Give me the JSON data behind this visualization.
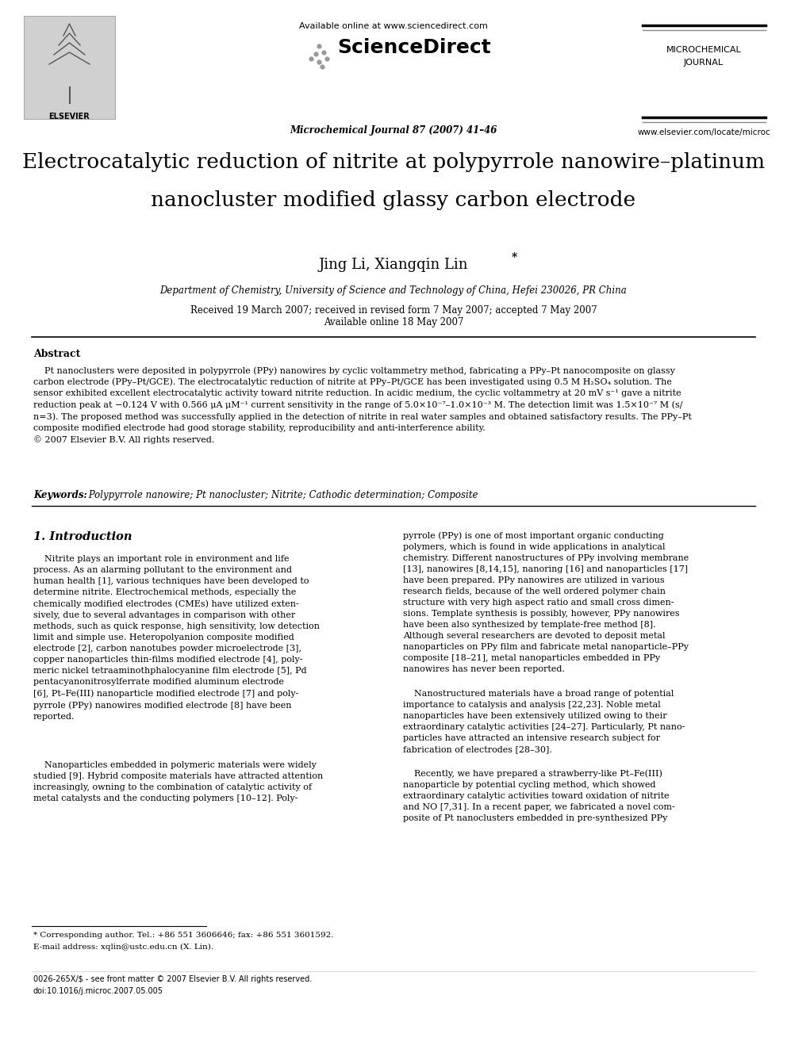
{
  "bg_color": "#ffffff",
  "available_online": "Available online at www.sciencedirect.com",
  "sciencedirect_text": "ScienceDirect",
  "journal_name_line1": "MICROCHEMICAL",
  "journal_name_line2": "JOURNAL",
  "journal_info": "Microchemical Journal 87 (2007) 41–46",
  "website": "www.elsevier.com/locate/microc",
  "elsevier_label": "ELSEVIER",
  "title_line1": "Electrocatalytic reduction of nitrite at polypyrrole nanowire–platinum",
  "title_line2": "nanocluster modified glassy carbon electrode",
  "authors": "Jing Li, Xiangqin Lin",
  "affiliation": "Department of Chemistry, University of Science and Technology of China, Hefei 230026, PR China",
  "date_line1": "Received 19 March 2007; received in revised form 7 May 2007; accepted 7 May 2007",
  "date_line2": "Available online 18 May 2007",
  "abstract_label": "Abstract",
  "abstract_body": "    Pt nanoclusters were deposited in polypyrrole (PPy) nanowires by cyclic voltammetry method, fabricating a PPy–Pt nanocomposite on glassy\ncarbon electrode (PPy–Pt/GCE). The electrocatalytic reduction of nitrite at PPy–Pt/GCE has been investigated using 0.5 M H₂SO₄ solution. The\nsensor exhibited excellent electrocatalytic activity toward nitrite reduction. In acidic medium, the cyclic voltammetry at 20 mV s⁻¹ gave a nitrite\nreduction peak at −0.124 V with 0.566 μA μM⁻¹ current sensitivity in the range of 5.0×10⁻⁷–1.0×10⁻³ M. The detection limit was 1.5×10⁻⁷ M (s/\nn=3). The proposed method was successfully applied in the detection of nitrite in real water samples and obtained satisfactory results. The PPy–Pt\ncomposite modified electrode had good storage stability, reproducibility and anti-interference ability.\n© 2007 Elsevier B.V. All rights reserved.",
  "keywords_label": "Keywords:",
  "keywords_body": " Polypyrrole nanowire; Pt nanocluster; Nitrite; Cathodic determination; Composite",
  "section1_title": "1. Introduction",
  "col1_p1": "    Nitrite plays an important role in environment and life\nprocess. As an alarming pollutant to the environment and\nhuman health [1], various techniques have been developed to\ndetermine nitrite. Electrochemical methods, especially the\nchemically modified electrodes (CMEs) have utilized exten-\nsively, due to several advantages in comparison with other\nmethods, such as quick response, high sensitivity, low detection\nlimit and simple use. Heteropolyanion composite modified\nelectrode [2], carbon nanotubes powder microelectrode [3],\ncopper nanoparticles thin-films modified electrode [4], poly-\nmeric nickel tetraaminothphalocyanine film electrode [5], Pd\npentacyanonitrosylferrate modified aluminum electrode\n[6], Pt–Fe(III) nanoparticle modified electrode [7] and poly-\npyrrole (PPy) nanowires modified electrode [8] have been\nreported.",
  "col1_p2": "    Nanoparticles embedded in polymeric materials were widely\nstudied [9]. Hybrid composite materials have attracted attention\nincreasingly, owning to the combination of catalytic activity of\nmetal catalysts and the conducting polymers [10–12]. Poly-",
  "col2_p1": "pyrrole (PPy) is one of most important organic conducting\npolymers, which is found in wide applications in analytical\nchemistry. Different nanostructures of PPy involving membrane\n[13], nanowires [8,14,15], nanoring [16] and nanoparticles [17]\nhave been prepared. PPy nanowires are utilized in various\nresearch fields, because of the well ordered polymer chain\nstructure with very high aspect ratio and small cross dimen-\nsions. Template synthesis is possibly, however, PPy nanowires\nhave been also synthesized by template-free method [8].\nAlthough several researchers are devoted to deposit metal\nnanoparticles on PPy film and fabricate metal nanoparticle–PPy\ncomposite [18–21], metal nanoparticles embedded in PPy\nnanowires has never been reported.",
  "col2_p2": "    Nanostructured materials have a broad range of potential\nimportance to catalysis and analysis [22,23]. Noble metal\nnanoparticles have been extensively utilized owing to their\nextraordinary catalytic activities [24–27]. Particularly, Pt nano-\nparticles have attracted an intensive research subject for\nfabrication of electrodes [28–30].",
  "col2_p3": "    Recently, we have prepared a strawberry-like Pt–Fe(III)\nnanoparticle by potential cycling method, which showed\nextraordinary catalytic activities toward oxidation of nitrite\nand NO [7,31]. In a recent paper, we fabricated a novel com-\nposite of Pt nanoclusters embedded in pre-synthesized PPy",
  "footnote_star": "* Corresponding author. Tel.: +86 551 3606646; fax: +86 551 3601592.",
  "footnote_email": "E-mail address: xqlin@ustc.edu.cn (X. Lin).",
  "footnote_issn": "0026-265X/$ - see front matter © 2007 Elsevier B.V. All rights reserved.",
  "footnote_doi": "doi:10.1016/j.microc.2007.05.005"
}
